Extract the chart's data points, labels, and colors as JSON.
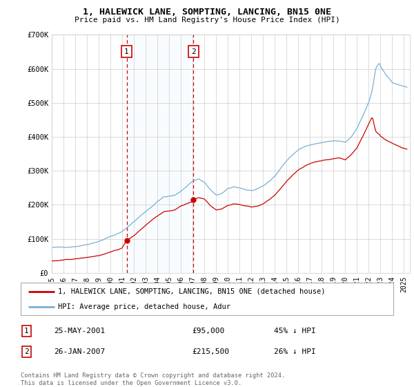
{
  "title": "1, HALEWICK LANE, SOMPTING, LANCING, BN15 0NE",
  "subtitle": "Price paid vs. HM Land Registry's House Price Index (HPI)",
  "legend_line1": "1, HALEWICK LANE, SOMPTING, LANCING, BN15 0NE (detached house)",
  "legend_line2": "HPI: Average price, detached house, Adur",
  "footnote": "Contains HM Land Registry data © Crown copyright and database right 2024.\nThis data is licensed under the Open Government Licence v3.0.",
  "sale1_date": "25-MAY-2001",
  "sale1_price": "£95,000",
  "sale1_hpi": "45% ↓ HPI",
  "sale2_date": "26-JAN-2007",
  "sale2_price": "£215,500",
  "sale2_hpi": "26% ↓ HPI",
  "sale1_year": 2001.38,
  "sale1_value": 95000,
  "sale2_year": 2007.07,
  "sale2_value": 215500,
  "red_color": "#cc0000",
  "blue_color": "#7aafd4",
  "background_color": "#ffffff",
  "grid_color": "#cccccc",
  "shade_color": "#ddeeff",
  "ylim": [
    0,
    700000
  ],
  "xlim_start": 1995.0,
  "xlim_end": 2025.5
}
